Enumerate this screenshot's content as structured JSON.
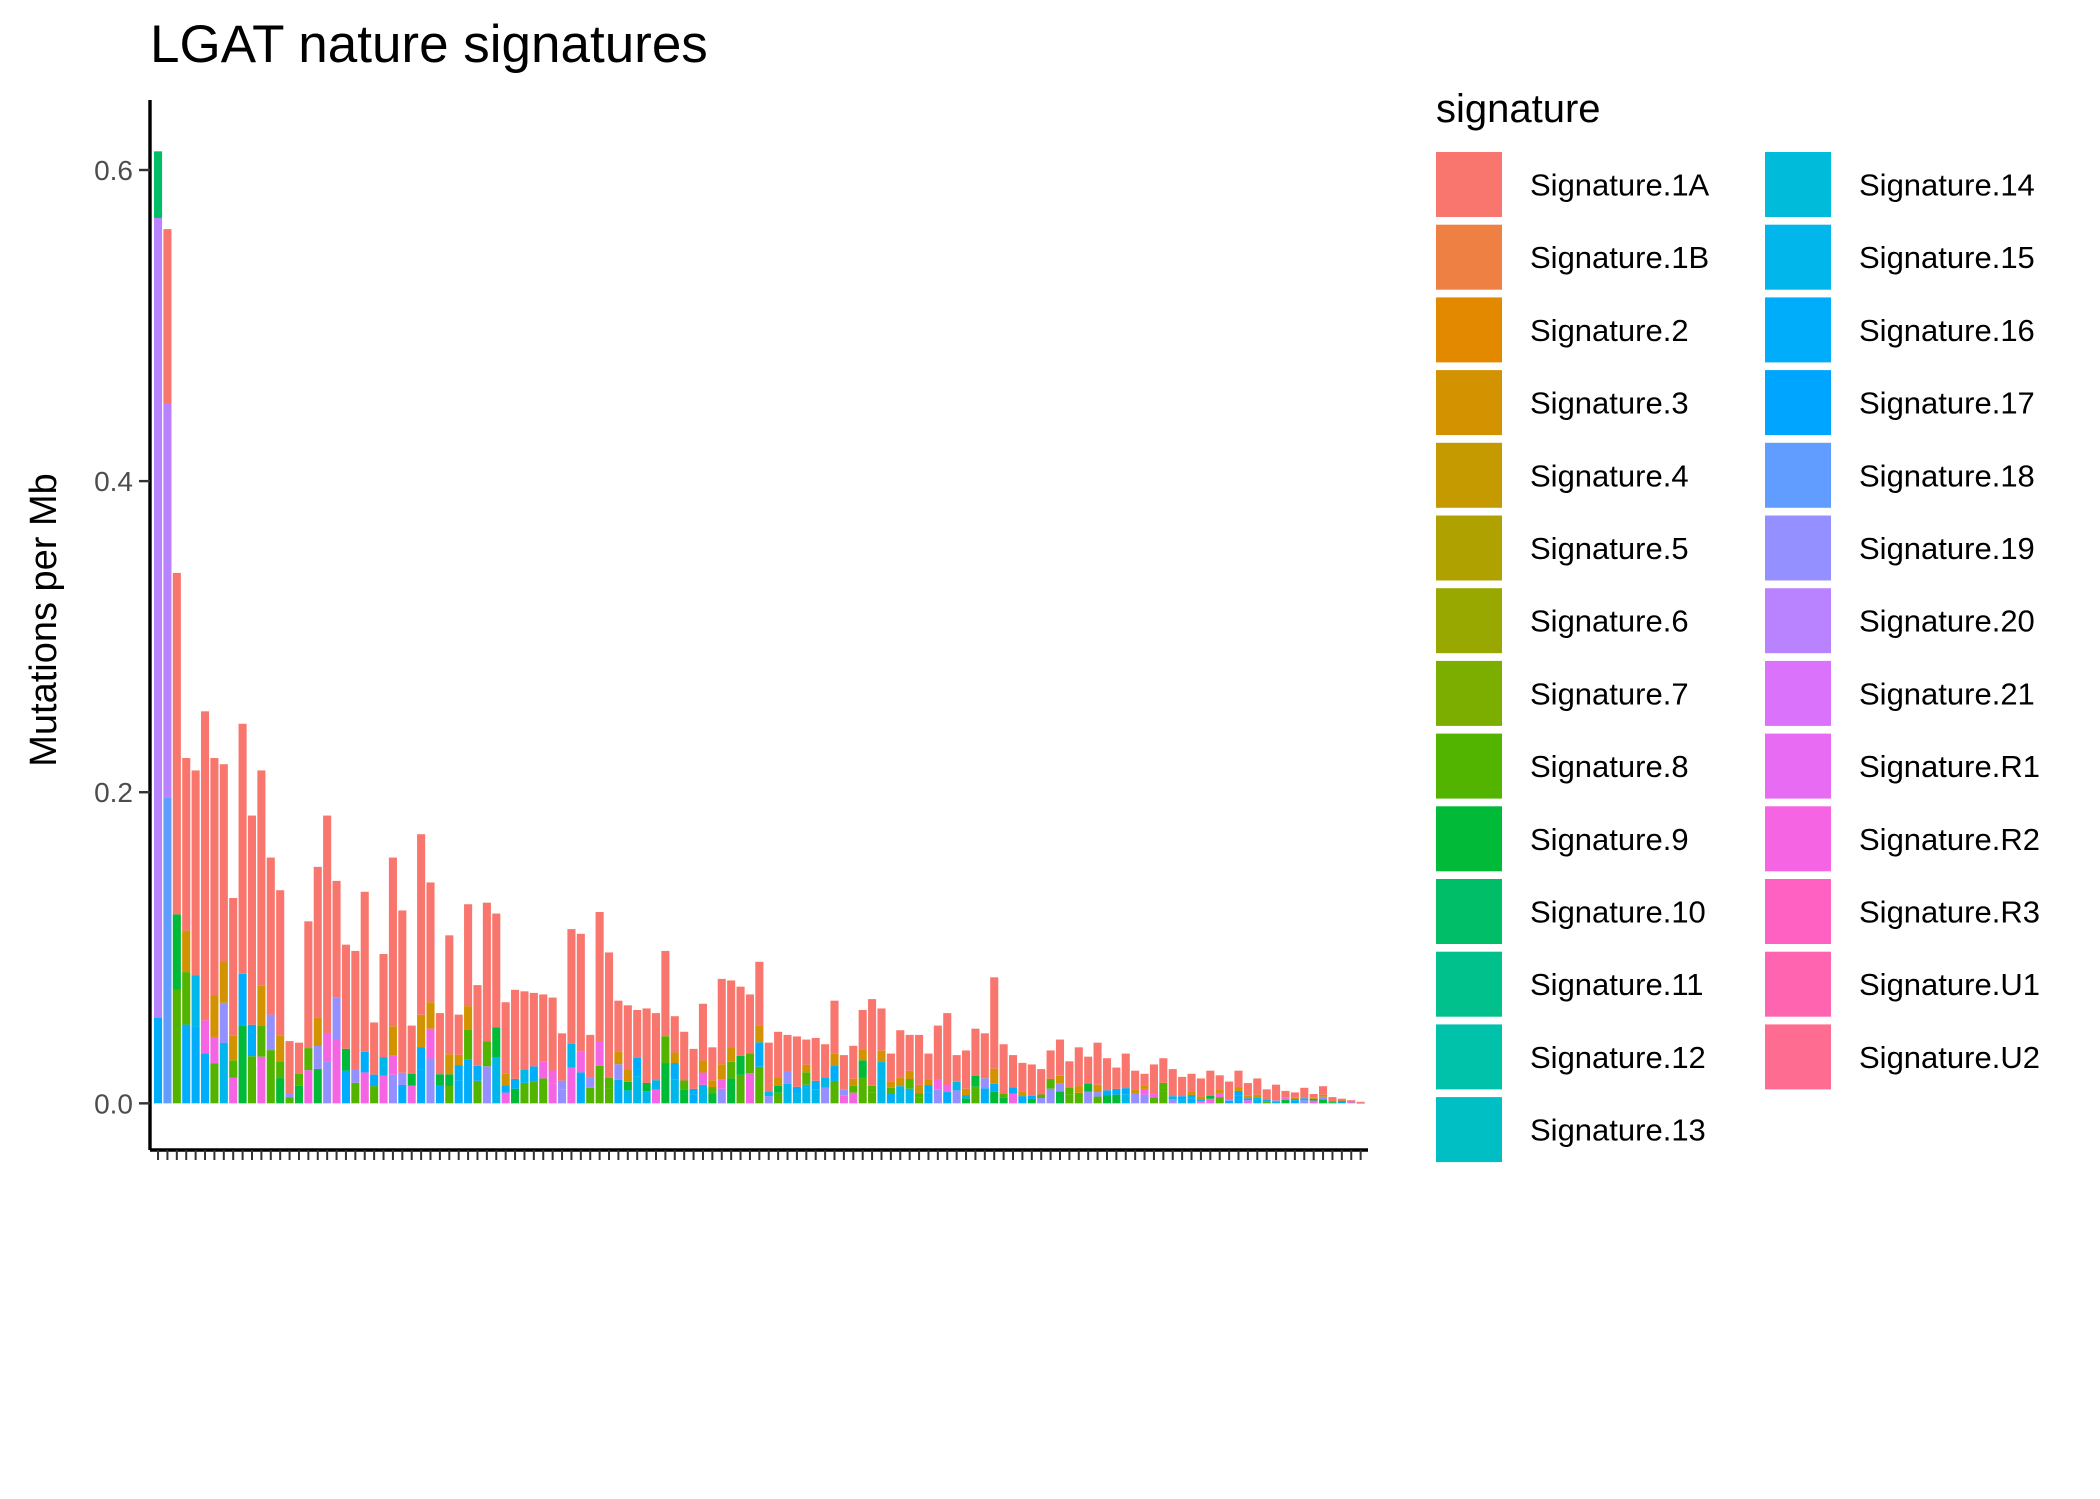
{
  "chart_data": {
    "type": "bar",
    "stacked": true,
    "title": "LGAT nature signatures",
    "xlabel": "",
    "ylabel": "Mutations per Mb",
    "ylim": [
      -0.03,
      0.645
    ],
    "yticks": [
      0.0,
      0.2,
      0.4,
      0.6
    ],
    "ytick_labels": [
      "0.0",
      "0.2",
      "0.4",
      "0.6"
    ],
    "grid": false,
    "legend": {
      "title": "signature",
      "placement": "right",
      "entries": [
        {
          "name": "Signature.1A",
          "color": "#F8766D"
        },
        {
          "name": "Signature.1B",
          "color": "#EE8044"
        },
        {
          "name": "Signature.2",
          "color": "#E38900"
        },
        {
          "name": "Signature.3",
          "color": "#D39200"
        },
        {
          "name": "Signature.4",
          "color": "#C49A00"
        },
        {
          "name": "Signature.5",
          "color": "#AFA100"
        },
        {
          "name": "Signature.6",
          "color": "#99A800"
        },
        {
          "name": "Signature.7",
          "color": "#7CAE00"
        },
        {
          "name": "Signature.8",
          "color": "#53B400"
        },
        {
          "name": "Signature.9",
          "color": "#00BA38"
        },
        {
          "name": "Signature.10",
          "color": "#00BE67"
        },
        {
          "name": "Signature.11",
          "color": "#00C08B"
        },
        {
          "name": "Signature.12",
          "color": "#00C1A9"
        },
        {
          "name": "Signature.13",
          "color": "#00BFC4"
        },
        {
          "name": "Signature.14",
          "color": "#00BBDA"
        },
        {
          "name": "Signature.15",
          "color": "#00B6EB"
        },
        {
          "name": "Signature.16",
          "color": "#00ADFA"
        },
        {
          "name": "Signature.17",
          "color": "#00A5FF"
        },
        {
          "name": "Signature.18",
          "color": "#619CFF"
        },
        {
          "name": "Signature.19",
          "color": "#9590FF"
        },
        {
          "name": "Signature.20",
          "color": "#B983FF"
        },
        {
          "name": "Signature.21",
          "color": "#DB72FB"
        },
        {
          "name": "Signature.R1",
          "color": "#E76BF3"
        },
        {
          "name": "Signature.R2",
          "color": "#F564E3"
        },
        {
          "name": "Signature.R3",
          "color": "#FF61C3"
        },
        {
          "name": "Signature.U1",
          "color": "#FF64B0"
        },
        {
          "name": "Signature.U2",
          "color": "#FF6C91"
        }
      ]
    },
    "totals": [
      0.612,
      0.562,
      0.341,
      0.222,
      0.214,
      0.252,
      0.222,
      0.218,
      0.132,
      0.244,
      0.185,
      0.214,
      0.158,
      0.137,
      0.04,
      0.039,
      0.117,
      0.152,
      0.185,
      0.143,
      0.102,
      0.098,
      0.136,
      0.052,
      0.096,
      0.158,
      0.124,
      0.05,
      0.173,
      0.142,
      0.058,
      0.108,
      0.057,
      0.128,
      0.076,
      0.129,
      0.122,
      0.065,
      0.073,
      0.072,
      0.071,
      0.07,
      0.068,
      0.045,
      0.112,
      0.109,
      0.044,
      0.123,
      0.097,
      0.066,
      0.063,
      0.06,
      0.061,
      0.058,
      0.098,
      0.056,
      0.046,
      0.035,
      0.064,
      0.036,
      0.08,
      0.079,
      0.075,
      0.07,
      0.091,
      0.039,
      0.046,
      0.044,
      0.043,
      0.041,
      0.042,
      0.038,
      0.066,
      0.031,
      0.037,
      0.06,
      0.067,
      0.061,
      0.032,
      0.047,
      0.044,
      0.044,
      0.032,
      0.05,
      0.058,
      0.031,
      0.034,
      0.048,
      0.045,
      0.081,
      0.038,
      0.031,
      0.026,
      0.025,
      0.022,
      0.034,
      0.041,
      0.027,
      0.036,
      0.03,
      0.039,
      0.029,
      0.023,
      0.032,
      0.021,
      0.019,
      0.025,
      0.029,
      0.022,
      0.017,
      0.019,
      0.016,
      0.021,
      0.018,
      0.014,
      0.021,
      0.013,
      0.016,
      0.009,
      0.012,
      0.008,
      0.007,
      0.01,
      0.006,
      0.011,
      0.004,
      0.003,
      0.002,
      0.001
    ]
  }
}
